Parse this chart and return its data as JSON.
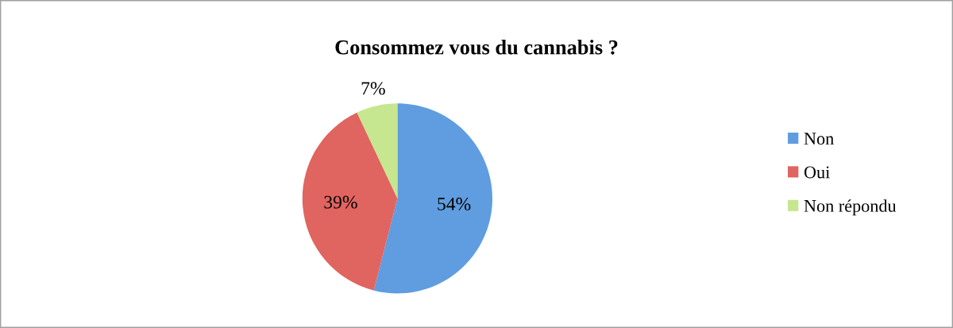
{
  "chart_data": {
    "type": "pie",
    "title": "Consommez vous du cannabis ?",
    "categories": [
      "Non",
      "Oui",
      "Non répondu"
    ],
    "values": [
      54,
      39,
      7
    ],
    "colors": [
      "#5f9de0",
      "#e0645f",
      "#c6e68f"
    ],
    "value_labels": [
      "54%",
      "39%",
      "7%"
    ],
    "legend": "right"
  }
}
